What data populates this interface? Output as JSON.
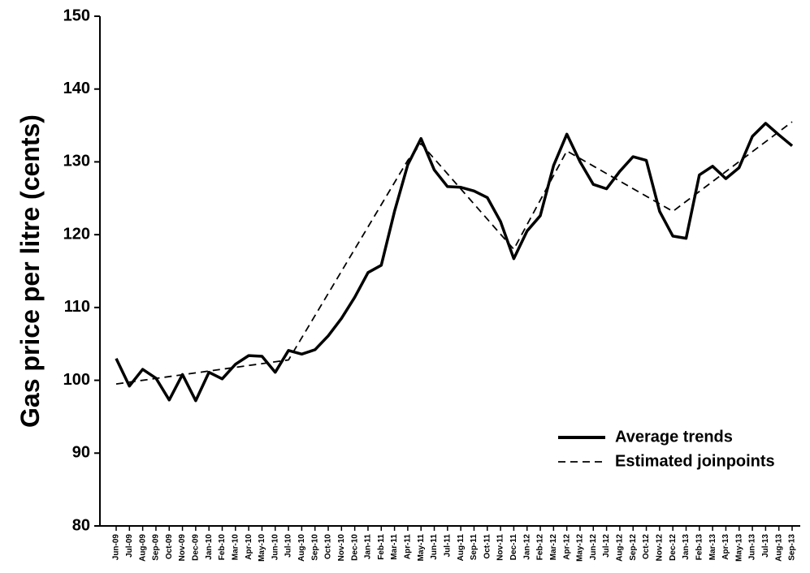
{
  "chart_data": {
    "type": "line",
    "y_label": "Gas price per litre (cents)",
    "categories": [
      "Jun-09",
      "Jul-09",
      "Aug-09",
      "Sep-09",
      "Oct-09",
      "Nov-09",
      "Dec-09",
      "Jan-10",
      "Feb-10",
      "Mar-10",
      "Apr-10",
      "May-10",
      "Jun-10",
      "Jul-10",
      "Aug-10",
      "Sep-10",
      "Oct-10",
      "Nov-10",
      "Dec-10",
      "Jan-11",
      "Feb-11",
      "Mar-11",
      "Apr-11",
      "May-11",
      "Jun-11",
      "Jul-11",
      "Aug-11",
      "Sep-11",
      "Oct-11",
      "Nov-11",
      "Dec-11",
      "Jan-12",
      "Feb-12",
      "Mar-12",
      "Apr-12",
      "May-12",
      "Jun-12",
      "Jul-12",
      "Aug-12",
      "Sep-12",
      "Oct-12",
      "Nov-12",
      "Dec-12",
      "Jan-13",
      "Feb-13",
      "Mar-13",
      "Apr-13",
      "May-13",
      "Jun-13",
      "Jul-13",
      "Aug-13",
      "Sep-13"
    ],
    "series": [
      {
        "name": "Average trends",
        "color": "#000000",
        "style": "solid",
        "values": [
          103.0,
          99.2,
          101.5,
          100.3,
          97.3,
          100.8,
          97.2,
          101.1,
          100.2,
          102.2,
          103.4,
          103.3,
          101.1,
          104.1,
          103.6,
          104.2,
          106.1,
          108.5,
          111.4,
          114.8,
          115.8,
          123.2,
          129.6,
          133.2,
          128.9,
          126.6,
          126.5,
          126.0,
          125.1,
          121.8,
          116.7,
          120.5,
          122.6,
          129.5,
          133.8,
          130.0,
          126.9,
          126.3,
          128.7,
          130.7,
          130.2,
          123.2,
          119.8,
          119.5,
          128.2,
          129.4,
          127.7,
          129.2,
          133.5,
          135.3,
          133.7,
          132.2
        ]
      },
      {
        "name": "Estimated joinpoints",
        "color": "#000000",
        "style": "dashed",
        "x": [
          "Jun-09",
          "Jul-10",
          "Apr-11",
          "May-11",
          "Dec-11",
          "Apr-12",
          "Dec-12",
          "Sep-13"
        ],
        "values": [
          99.5,
          102.8,
          130.2,
          132.5,
          118.0,
          131.5,
          123.2,
          135.5
        ]
      }
    ],
    "ylim": [
      80,
      150
    ],
    "yticks": [
      80,
      90,
      100,
      110,
      120,
      130,
      140,
      150
    ],
    "legend": "lower right"
  }
}
